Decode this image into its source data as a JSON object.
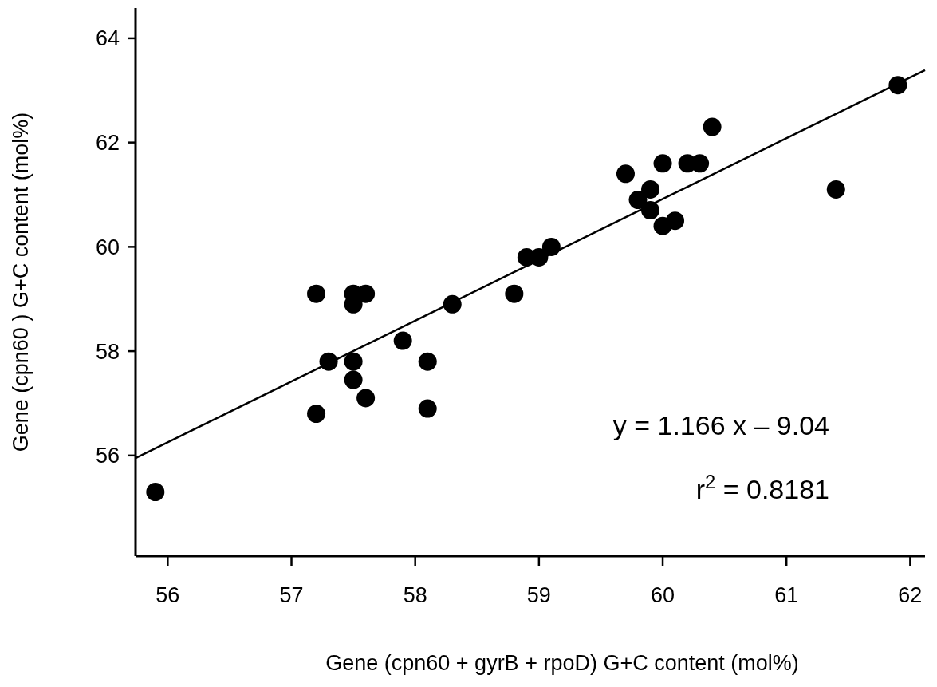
{
  "chart_data": {
    "type": "scatter",
    "xlabel": "Gene (cpn60 + gyrB + rpoD) G+C content (mol%)",
    "ylabel": "Gene (cpn60 ) G+C content (mol%)",
    "xlim": [
      55.74,
      62.12
    ],
    "ylim": [
      54.07,
      64.58
    ],
    "xticks": [
      56,
      57,
      58,
      59,
      60,
      61,
      62
    ],
    "yticks": [
      56,
      58,
      60,
      62,
      64
    ],
    "grid": false,
    "annotations": [
      "y = 1.166 x – 9.04",
      "r$^{2}$ = 0.8181"
    ],
    "series": [
      {
        "color": "#000000",
        "marker": "circle",
        "x": [
          55.9,
          57.2,
          57.2,
          57.3,
          57.5,
          57.5,
          57.5,
          57.5,
          57.6,
          57.6,
          57.9,
          58.1,
          58.1,
          58.3,
          58.8,
          58.9,
          59.0,
          59.1,
          59.7,
          59.8,
          59.9,
          59.9,
          60.0,
          60.0,
          60.1,
          60.2,
          60.3,
          60.4,
          61.4,
          61.9
        ],
        "values": [
          55.3,
          59.1,
          56.8,
          57.8,
          59.1,
          58.9,
          57.8,
          57.45,
          59.1,
          57.1,
          58.2,
          57.8,
          56.9,
          58.9,
          59.1,
          59.8,
          59.8,
          60.0,
          61.4,
          60.9,
          61.1,
          60.7,
          61.6,
          60.4,
          60.5,
          61.6,
          61.6,
          62.3,
          61.1,
          63.1
        ]
      },
      {
        "type": "line",
        "color": "#000000",
        "line_style": "solid",
        "x": [
          55.74,
          62.12
        ],
        "values": [
          55.95,
          63.39
        ]
      }
    ]
  }
}
